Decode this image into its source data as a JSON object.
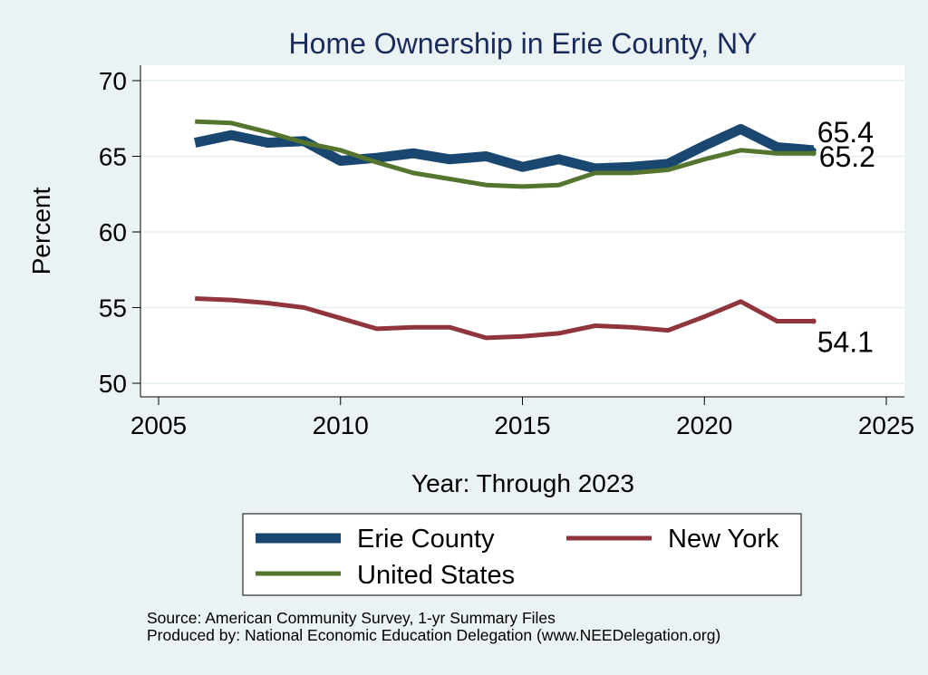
{
  "chart_data": {
    "type": "line",
    "title": "Home Ownership in Erie County, NY",
    "xlabel": "Year: Through 2023",
    "ylabel": "Percent",
    "xlim": [
      2005,
      2025
    ],
    "ylim": [
      49,
      71
    ],
    "x_ticks": [
      2005,
      2010,
      2015,
      2020,
      2025
    ],
    "y_ticks": [
      50,
      55,
      60,
      65,
      70
    ],
    "grid": true,
    "legend_position": "bottom",
    "x": [
      2006,
      2007,
      2008,
      2009,
      2010,
      2011,
      2012,
      2013,
      2014,
      2015,
      2016,
      2017,
      2018,
      2019,
      2020,
      2021,
      2022,
      2023
    ],
    "series": [
      {
        "name": "Erie County",
        "color": "#1a476f",
        "values": [
          65.9,
          66.4,
          65.9,
          66.0,
          64.7,
          64.9,
          65.2,
          64.8,
          65.0,
          64.3,
          64.8,
          64.2,
          64.3,
          64.5,
          65.7,
          66.8,
          65.6,
          65.4
        ],
        "end_label": "65.4"
      },
      {
        "name": "New York",
        "color": "#90353b",
        "values": [
          55.6,
          55.5,
          55.3,
          55.0,
          54.3,
          53.6,
          53.7,
          53.7,
          53.0,
          53.1,
          53.3,
          53.8,
          53.7,
          53.5,
          54.4,
          55.4,
          54.1,
          54.1
        ],
        "end_label": "54.1"
      },
      {
        "name": "United States",
        "color": "#55752f",
        "values": [
          67.3,
          67.2,
          66.6,
          65.9,
          65.4,
          64.6,
          63.9,
          63.5,
          63.1,
          63.0,
          63.1,
          63.9,
          63.9,
          64.1,
          64.8,
          65.4,
          65.2,
          65.2
        ],
        "end_label": "65.2"
      }
    ],
    "legend": [
      "Erie County",
      "New York",
      "United States"
    ],
    "annotations": [
      "65.4",
      "65.2",
      "54.1"
    ]
  },
  "notes": {
    "source": "Source: American Community Survey, 1-yr Summary Files",
    "produced": "Produced by: National Economic Education Delegation (www.NEEDelegation.org)"
  }
}
